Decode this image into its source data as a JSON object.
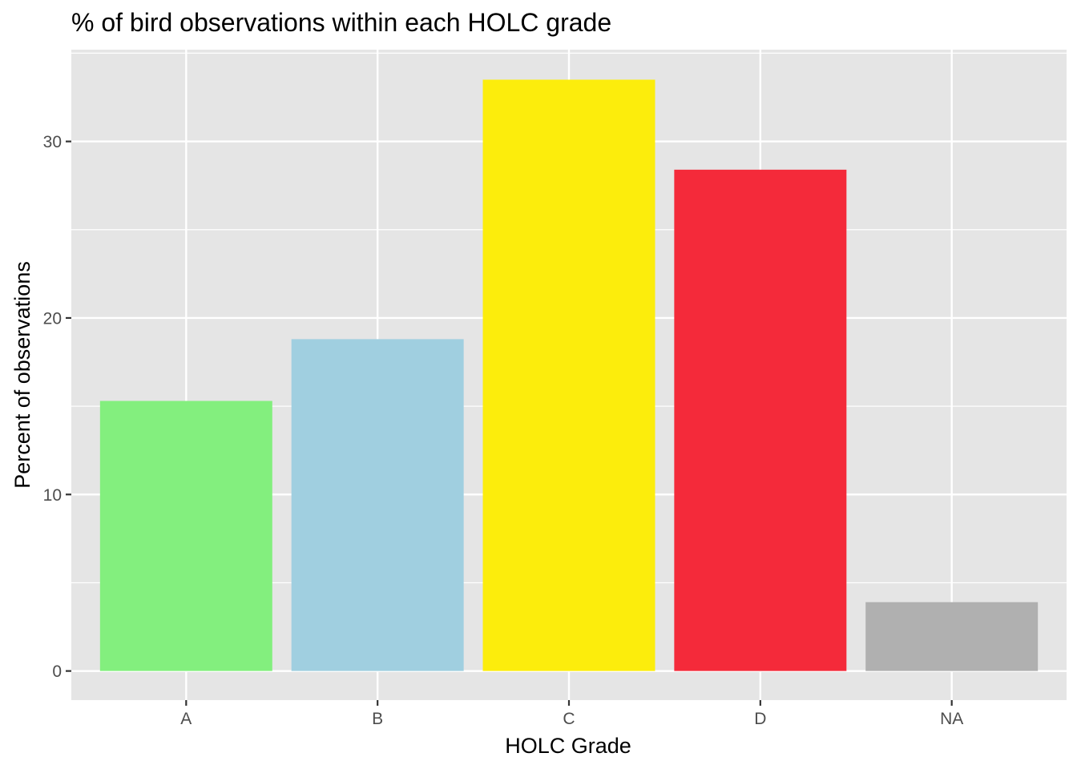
{
  "chart_data": {
    "type": "bar",
    "title": "% of bird observations within each HOLC grade",
    "xlabel": "HOLC Grade",
    "ylabel": "Percent of observations",
    "categories": [
      "A",
      "B",
      "C",
      "D",
      "NA"
    ],
    "values": [
      15.3,
      18.8,
      33.5,
      28.4,
      3.9
    ],
    "colors": [
      "#83ef7e",
      "#a0cfe0",
      "#fced0c",
      "#f42a3a",
      "#b0b0b0"
    ],
    "ylim": [
      -1.65,
      35.2
    ],
    "yticks": [
      0,
      10,
      20,
      30
    ],
    "grid": true,
    "legend": "none",
    "panel_background": "#e5e5e5",
    "grid_color": "#ffffff"
  }
}
